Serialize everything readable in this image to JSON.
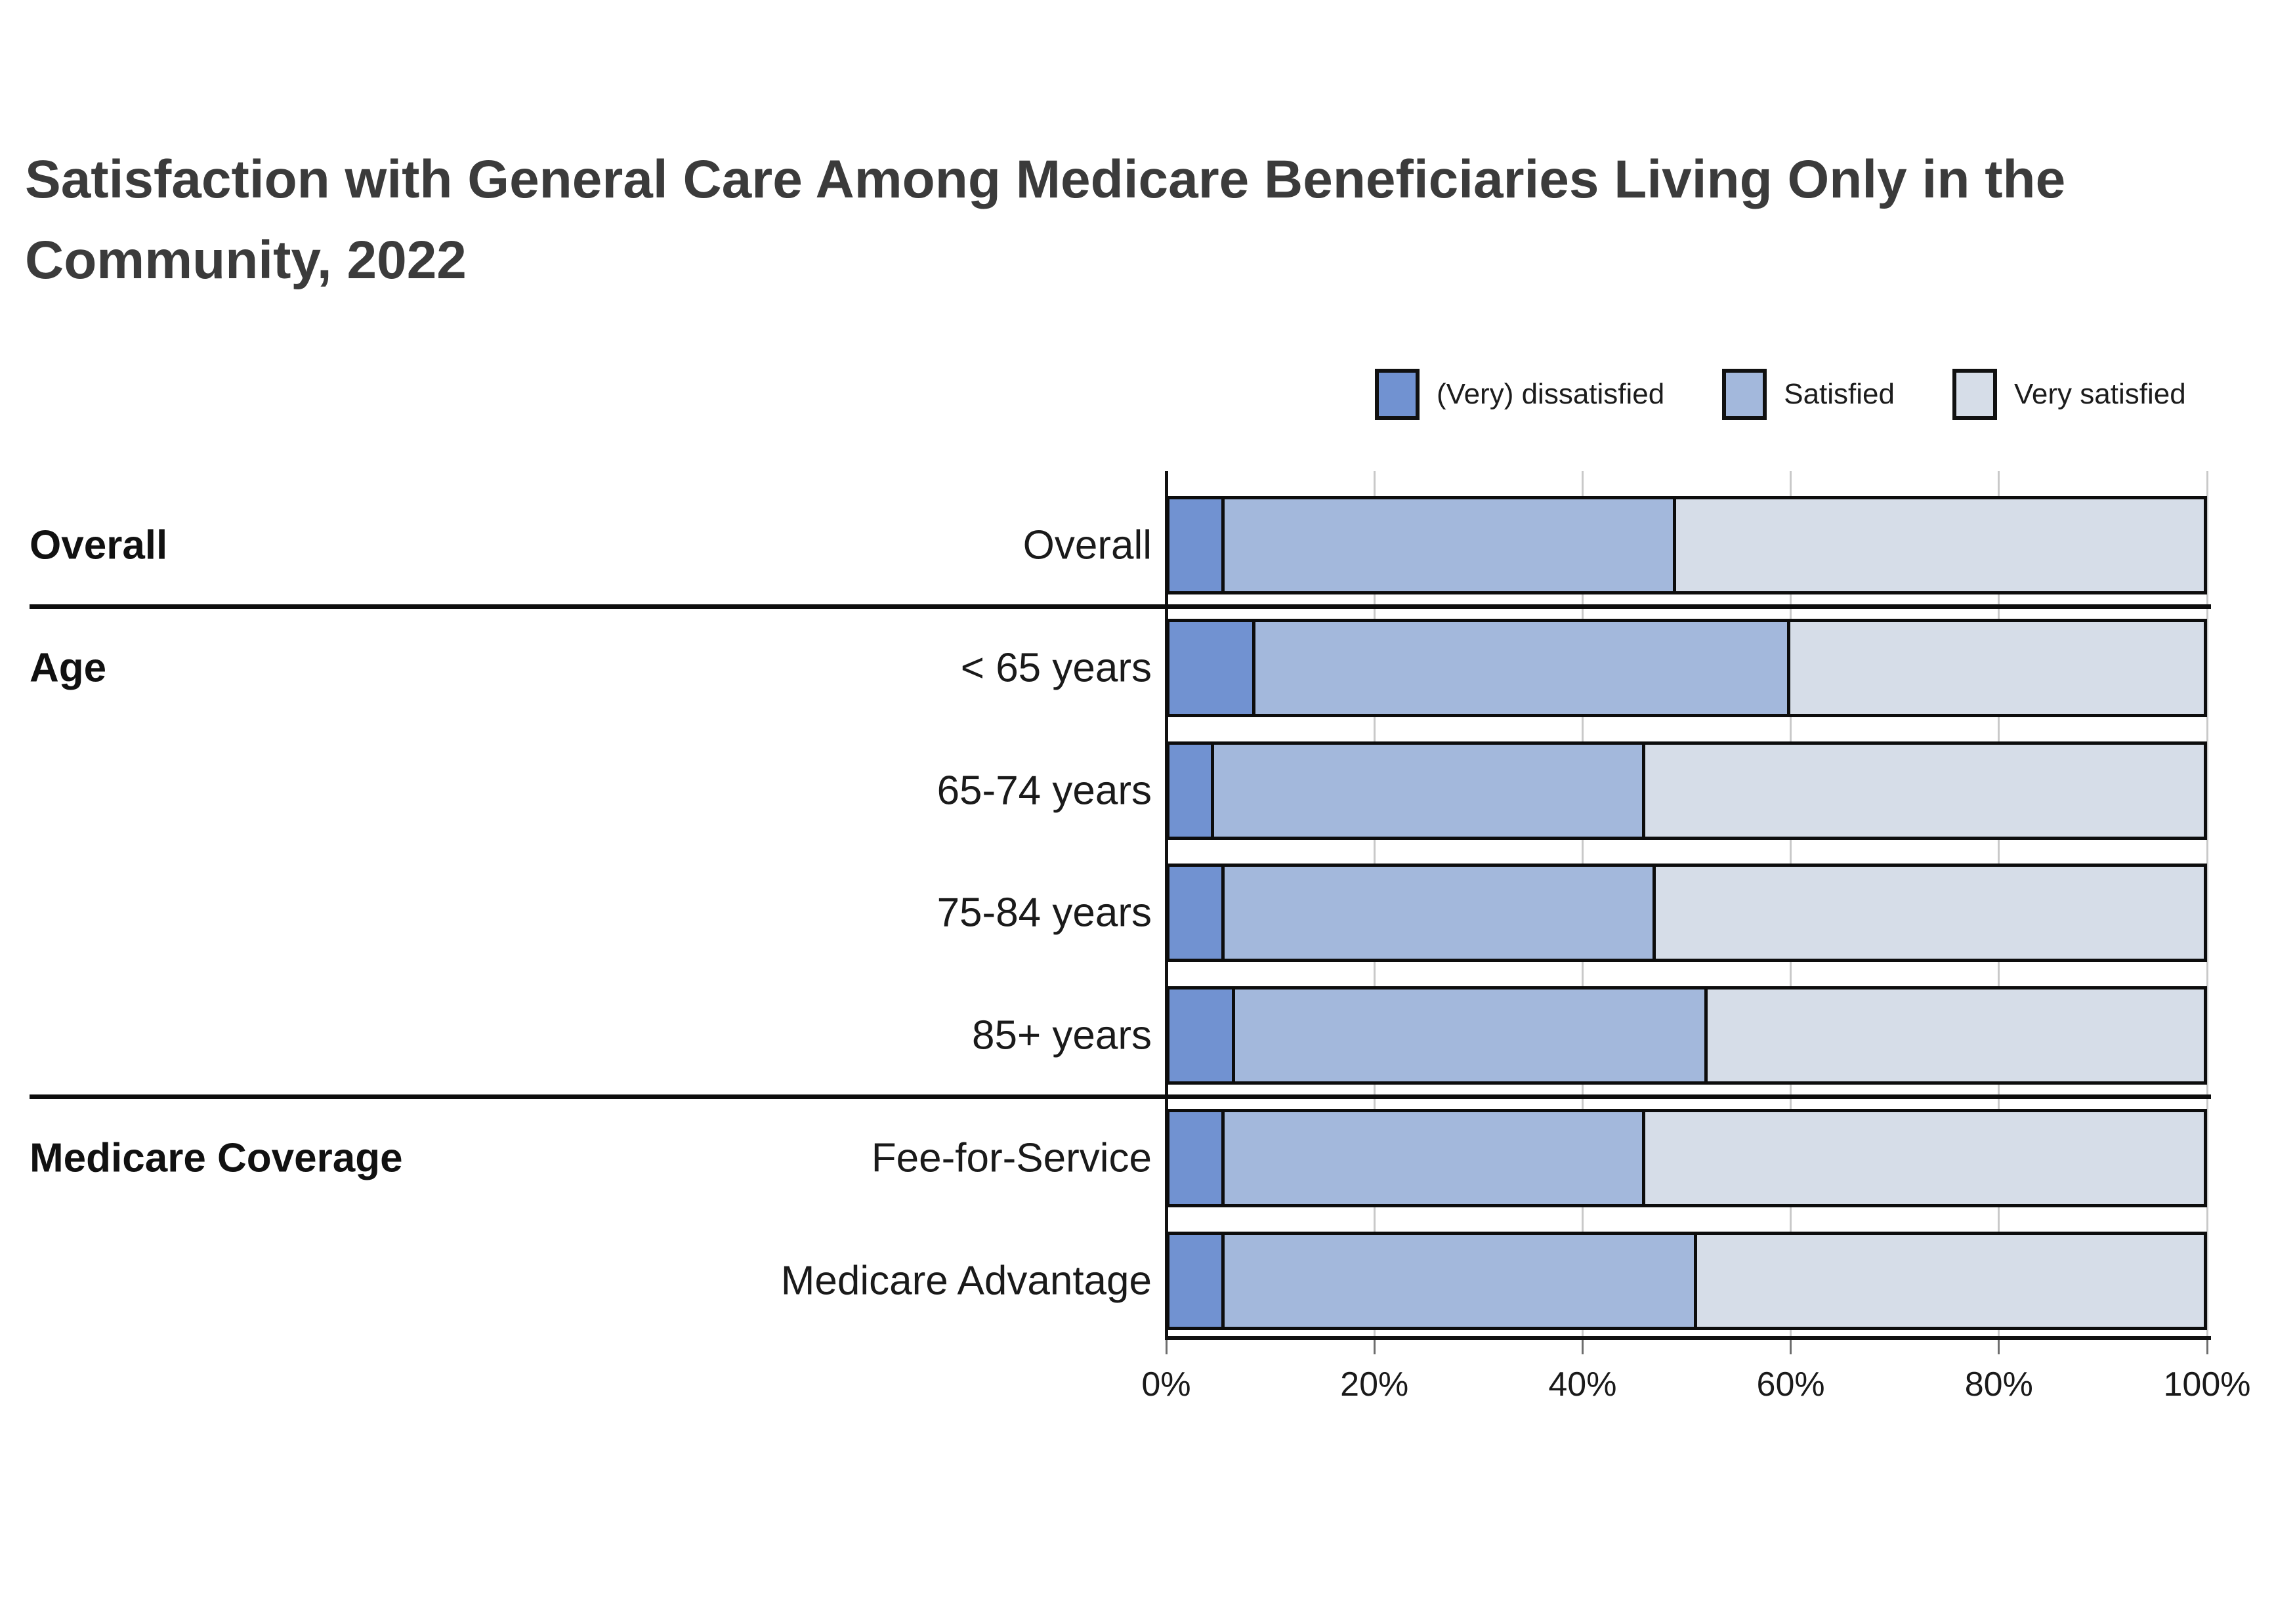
{
  "title": "Satisfaction with General Care Among Medicare Beneficiaries Living Only in the Community, 2022",
  "title_lines": [
    "Satisfaction with General Care Among Medicare Beneficiaries Living Only in the",
    "Community, 2022"
  ],
  "legend": {
    "position": "top-right",
    "items": [
      {
        "label": "(Very) dissatisfied",
        "color": "#7192d1"
      },
      {
        "label": "Satisfied",
        "color": "#a3b8dc"
      },
      {
        "label": "Very satisfied",
        "color": "#d6dde8"
      }
    ]
  },
  "chart_data": {
    "type": "bar",
    "stacked": true,
    "orientation": "horizontal",
    "title": "Satisfaction with General Care Among Medicare Beneficiaries Living Only in the Community, 2022",
    "series_names": [
      "(Very) dissatisfied",
      "Satisfied",
      "Very satisfied"
    ],
    "series_colors": [
      "#7192d1",
      "#a3b8dc",
      "#d6dde8"
    ],
    "groups": [
      {
        "label": "Overall",
        "rows": [
          {
            "label": "Overall",
            "values": [
              5,
              44,
              51
            ]
          }
        ]
      },
      {
        "label": "Age",
        "rows": [
          {
            "label": "< 65 years",
            "values": [
              8,
              52,
              40
            ]
          },
          {
            "label": "65-74 years",
            "values": [
              4,
              42,
              54
            ]
          },
          {
            "label": "75-84 years",
            "values": [
              5,
              42,
              53
            ]
          },
          {
            "label": "85+ years",
            "values": [
              6,
              46,
              48
            ]
          }
        ]
      },
      {
        "label": "Medicare Coverage",
        "rows": [
          {
            "label": "Fee-for-Service",
            "values": [
              5,
              41,
              54
            ]
          },
          {
            "label": "Medicare Advantage",
            "values": [
              5,
              46,
              49
            ]
          }
        ]
      }
    ],
    "x_ticks": [
      "0%",
      "20%",
      "40%",
      "60%",
      "80%",
      "100%"
    ],
    "x_tick_values": [
      0,
      20,
      40,
      60,
      80,
      100
    ],
    "x_range": [
      0,
      100
    ],
    "grid": true,
    "axis_color": "#111111",
    "gridline_color": "#c9c9c9",
    "bar_border_color": "#0d0d0d",
    "title_color": "#3b3b3b"
  }
}
